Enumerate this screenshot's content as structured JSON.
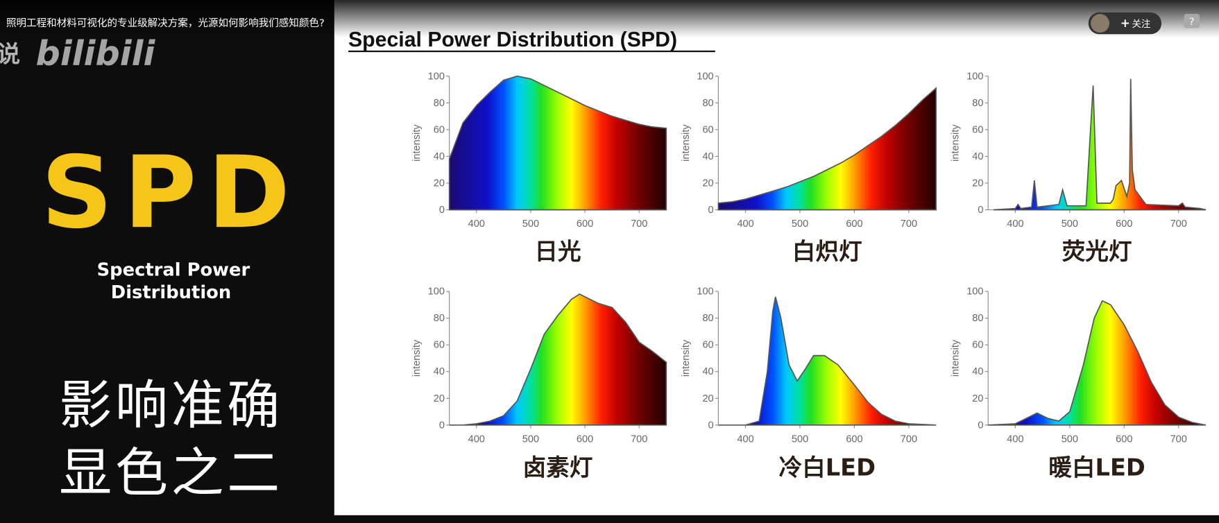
{
  "page": {
    "video_title": "照明工程和材料可视化的专业级解决方案，光源如何影响我们感知颜色?",
    "watermark": "说",
    "logo": "bilibili",
    "follow": "关注",
    "help": "?"
  },
  "slide": {
    "heading": "Special Power Distribution (SPD)",
    "big": "SPD",
    "subtitle_lines": [
      "Spectral Power",
      "Distribution"
    ],
    "caption_lines": [
      "影响准确",
      "显色之二"
    ]
  },
  "chart_data": [
    {
      "type": "area",
      "title": "日光",
      "ylabel": "intensity",
      "x": [
        350,
        375,
        400,
        425,
        450,
        475,
        500,
        525,
        550,
        575,
        600,
        625,
        650,
        675,
        700,
        725,
        750
      ],
      "values": [
        38,
        65,
        78,
        88,
        97,
        100,
        98,
        93,
        88,
        83,
        78,
        74,
        70,
        67,
        64,
        62,
        61
      ],
      "xlim": [
        350,
        750
      ],
      "ylim": [
        0,
        100
      ],
      "xticks": [
        400,
        500,
        600,
        700
      ],
      "yticks": [
        0,
        20,
        40,
        60,
        80,
        100
      ]
    },
    {
      "type": "area",
      "title": "白炽灯",
      "ylabel": "intensity",
      "x": [
        350,
        375,
        400,
        425,
        450,
        475,
        500,
        525,
        550,
        575,
        600,
        625,
        650,
        675,
        700,
        725,
        750
      ],
      "values": [
        5,
        6,
        8,
        11,
        14,
        17,
        21,
        25,
        30,
        35,
        41,
        48,
        55,
        63,
        72,
        82,
        91
      ],
      "xlim": [
        350,
        750
      ],
      "ylim": [
        0,
        100
      ],
      "xticks": [
        400,
        500,
        600,
        700
      ],
      "yticks": [
        0,
        20,
        40,
        60,
        80,
        100
      ]
    },
    {
      "type": "area",
      "title": "荧光灯",
      "ylabel": "intensity",
      "x": [
        360,
        400,
        405,
        410,
        430,
        435,
        440,
        480,
        487,
        495,
        530,
        543,
        550,
        575,
        580,
        585,
        595,
        605,
        610,
        612,
        615,
        620,
        640,
        700,
        707,
        712,
        740,
        750
      ],
      "values": [
        0,
        1,
        4,
        1,
        2,
        22,
        2,
        4,
        15,
        3,
        3,
        93,
        5,
        5,
        8,
        18,
        22,
        10,
        20,
        98,
        30,
        15,
        4,
        3,
        5,
        2,
        1,
        0
      ],
      "xlim": [
        350,
        750
      ],
      "ylim": [
        0,
        100
      ],
      "xticks": [
        400,
        500,
        600,
        700
      ],
      "yticks": [
        0,
        20,
        40,
        60,
        80,
        100
      ]
    },
    {
      "type": "area",
      "title": "卤素灯",
      "ylabel": "intensity",
      "x": [
        350,
        375,
        400,
        425,
        450,
        475,
        500,
        525,
        550,
        575,
        590,
        600,
        625,
        650,
        675,
        700,
        725,
        750
      ],
      "values": [
        0,
        0,
        1,
        3,
        7,
        18,
        42,
        68,
        82,
        94,
        98,
        96,
        91,
        88,
        77,
        62,
        55,
        47
      ],
      "xlim": [
        350,
        750
      ],
      "ylim": [
        0,
        100
      ],
      "xticks": [
        400,
        500,
        600,
        700
      ],
      "yticks": [
        0,
        20,
        40,
        60,
        80,
        100
      ]
    },
    {
      "type": "area",
      "title": "冷白LED",
      "ylabel": "intensity",
      "x": [
        350,
        400,
        425,
        440,
        450,
        455,
        465,
        480,
        495,
        510,
        525,
        545,
        570,
        600,
        625,
        650,
        675,
        700,
        750
      ],
      "values": [
        0,
        0,
        3,
        40,
        85,
        96,
        80,
        45,
        33,
        42,
        52,
        52,
        45,
        30,
        17,
        8,
        3,
        1,
        0
      ],
      "xlim": [
        350,
        750
      ],
      "ylim": [
        0,
        100
      ],
      "xticks": [
        400,
        500,
        600,
        700
      ],
      "yticks": [
        0,
        20,
        40,
        60,
        80,
        100
      ]
    },
    {
      "type": "area",
      "title": "暖白LED",
      "ylabel": "intensity",
      "x": [
        350,
        400,
        420,
        440,
        460,
        480,
        500,
        525,
        545,
        560,
        575,
        600,
        625,
        650,
        675,
        700,
        725,
        750
      ],
      "values": [
        0,
        1,
        5,
        9,
        5,
        3,
        10,
        45,
        80,
        93,
        90,
        75,
        55,
        32,
        15,
        6,
        2,
        0
      ],
      "xlim": [
        350,
        750
      ],
      "ylim": [
        0,
        100
      ],
      "xticks": [
        400,
        500,
        600,
        700
      ],
      "yticks": [
        0,
        20,
        40,
        60,
        80,
        100
      ]
    }
  ]
}
